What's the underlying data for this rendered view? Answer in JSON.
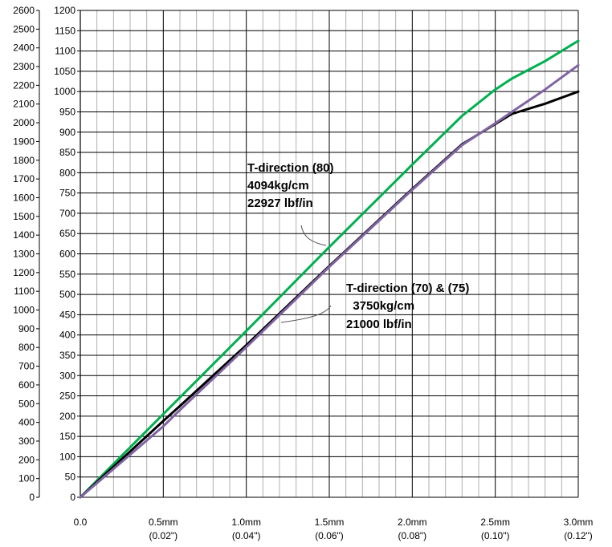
{
  "chart_data": {
    "type": "line",
    "title": "",
    "xlabel": "",
    "ylabel": "",
    "xlim": [
      0,
      3.0
    ],
    "ylim_right": [
      0,
      1200
    ],
    "ylim_left": [
      0,
      2600
    ],
    "grid": true,
    "x_ticks": [
      {
        "value": 0.0,
        "label": "0.0",
        "sublabel": ""
      },
      {
        "value": 0.5,
        "label": "0.5mm",
        "sublabel": "(0.02\")"
      },
      {
        "value": 1.0,
        "label": "1.0mm",
        "sublabel": "(0.04\")"
      },
      {
        "value": 1.5,
        "label": "1.5mm",
        "sublabel": "(0.06\")"
      },
      {
        "value": 2.0,
        "label": "2.0mm",
        "sublabel": "(0.08\")"
      },
      {
        "value": 2.5,
        "label": "2.5mm",
        "sublabel": "(0.10\")"
      },
      {
        "value": 3.0,
        "label": "3.0mm",
        "sublabel": "(0.12\")"
      }
    ],
    "y_ticks_right": [
      0,
      50,
      100,
      150,
      200,
      250,
      300,
      350,
      400,
      450,
      500,
      550,
      600,
      650,
      700,
      750,
      800,
      850,
      900,
      950,
      1000,
      1050,
      1100,
      1150,
      1200
    ],
    "y_ticks_left": [
      0,
      100,
      200,
      300,
      400,
      500,
      600,
      700,
      800,
      900,
      1000,
      1100,
      1200,
      1300,
      1400,
      1500,
      1600,
      1700,
      1800,
      1900,
      2000,
      2100,
      2200,
      2300,
      2400,
      2500,
      2600
    ],
    "series": [
      {
        "name": "",
        "color": "#00b050",
        "x": [
          0,
          0.5,
          1.0,
          1.5,
          2.0,
          2.3,
          2.5,
          2.6,
          2.8,
          3.0
        ],
        "y": [
          0,
          205,
          410,
          617,
          820,
          940,
          1005,
          1032,
          1075,
          1125
        ]
      },
      {
        "name": "",
        "color": "#000000",
        "x": [
          0,
          0.5,
          0.6,
          1.0,
          1.5,
          2.0,
          2.3,
          2.5,
          2.6,
          2.8,
          3.0
        ],
        "y": [
          0,
          188,
          225,
          375,
          570,
          760,
          870,
          920,
          945,
          970,
          1000
        ]
      },
      {
        "name": "",
        "color": "#8064a2",
        "x": [
          0,
          0.5,
          0.6,
          1.0,
          1.5,
          2.0,
          2.3,
          2.5,
          2.6,
          2.8,
          3.0
        ],
        "y": [
          0,
          175,
          215,
          370,
          568,
          758,
          868,
          922,
          950,
          1005,
          1065
        ]
      }
    ],
    "annotations": [
      {
        "lines": [
          "T-direction (80)",
          "4094kg/cm",
          "22927 lbf/in"
        ]
      },
      {
        "lines": [
          "T-direction (70) & (75)",
          "  3750kg/cm",
          "21000 lbf/in"
        ]
      }
    ]
  }
}
